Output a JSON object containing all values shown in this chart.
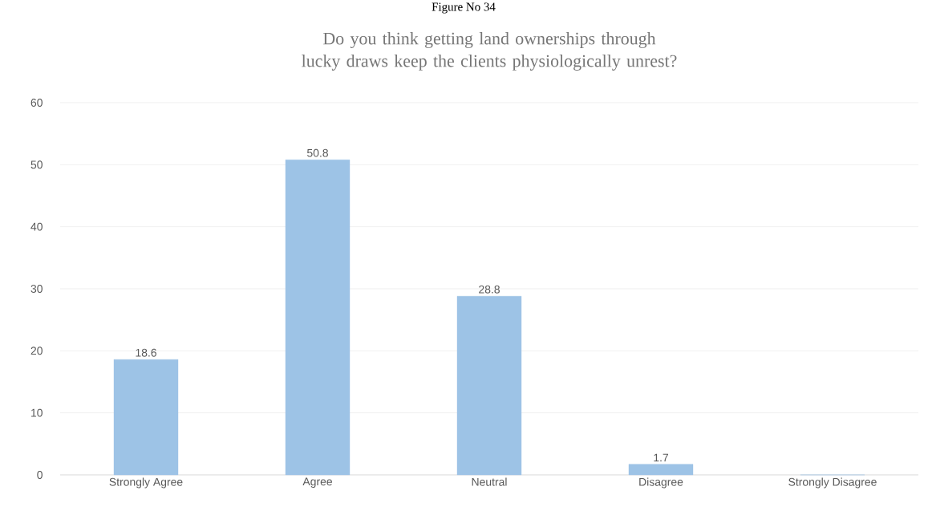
{
  "chart_data": {
    "type": "bar",
    "title": "Do you think getting land ownerships through lucky draws keep the clients physiologically unrest?",
    "annotations": [
      "Figure No 34"
    ],
    "categories": [
      "Strongly Agree",
      "Agree",
      "Neutral",
      "Disagree",
      "Strongly Disagree"
    ],
    "values": [
      18.6,
      50.8,
      28.8,
      1.7,
      0
    ],
    "value_labels": [
      "18.6",
      "50.8",
      "28.8",
      "1.7",
      null
    ],
    "color": "#9dc3e6",
    "ylim": [
      0,
      60
    ],
    "yticks": [
      0,
      10,
      20,
      30,
      40,
      50,
      60
    ],
    "grid": "y"
  }
}
